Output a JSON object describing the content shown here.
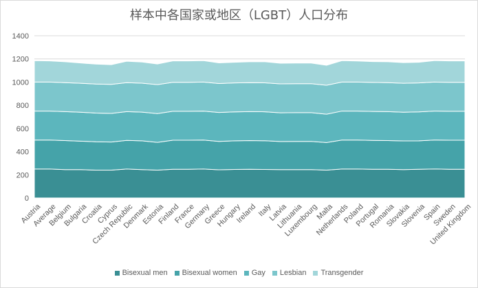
{
  "chart_data": {
    "type": "area",
    "stacked": true,
    "title": "样本中各国家或地区（LGBT）人口分布",
    "xlabel": "",
    "ylabel": "",
    "ylim": [
      0,
      1400
    ],
    "yticks": [
      0,
      200,
      400,
      600,
      800,
      1000,
      1200,
      1400
    ],
    "grid": true,
    "legend_position": "bottom",
    "categories": [
      "Austria",
      "Average",
      "Belgium",
      "Bulgaria",
      "Croatia",
      "Cyprus",
      "Czech Republic",
      "Denmark",
      "Estonia",
      "Finland",
      "France",
      "Germany",
      "Greece",
      "Hungary",
      "Ireland",
      "Italy",
      "Latvia",
      "Lithuania",
      "Luxembourg",
      "Malta",
      "Netherlands",
      "Poland",
      "Portugal",
      "Romania",
      "Slovakia",
      "Slovenia",
      "Spain",
      "Sweden",
      "United Kingdom"
    ],
    "series": [
      {
        "name": "Bisexual men",
        "color": "#3a8f94",
        "values": [
          250,
          250,
          245,
          245,
          240,
          240,
          250,
          245,
          240,
          248,
          248,
          250,
          243,
          246,
          248,
          246,
          245,
          245,
          245,
          240,
          250,
          250,
          248,
          248,
          245,
          248,
          250,
          248,
          248
        ]
      },
      {
        "name": "Bisexual women",
        "color": "#45a3a9",
        "values": [
          250,
          250,
          250,
          245,
          245,
          243,
          247,
          248,
          240,
          250,
          250,
          250,
          245,
          247,
          247,
          248,
          242,
          243,
          243,
          238,
          250,
          250,
          249,
          247,
          247,
          245,
          250,
          250,
          250
        ]
      },
      {
        "name": "Gay",
        "color": "#5cb6bd",
        "values": [
          250,
          250,
          250,
          250,
          248,
          247,
          248,
          248,
          248,
          250,
          250,
          250,
          250,
          250,
          250,
          250,
          248,
          248,
          248,
          245,
          250,
          250,
          250,
          250,
          248,
          250,
          250,
          250,
          250
        ]
      },
      {
        "name": "Lesbian",
        "color": "#7cc6cc",
        "values": [
          250,
          250,
          250,
          250,
          250,
          250,
          250,
          250,
          250,
          250,
          250,
          250,
          250,
          250,
          250,
          250,
          250,
          250,
          250,
          250,
          250,
          250,
          250,
          250,
          250,
          250,
          250,
          250,
          250
        ]
      },
      {
        "name": "Transgender",
        "color": "#a2d6da",
        "values": [
          185,
          183,
          180,
          175,
          172,
          170,
          185,
          182,
          178,
          185,
          185,
          185,
          178,
          178,
          180,
          181,
          178,
          178,
          178,
          172,
          185,
          182,
          180,
          180,
          178,
          178,
          185,
          185,
          185
        ]
      }
    ]
  }
}
